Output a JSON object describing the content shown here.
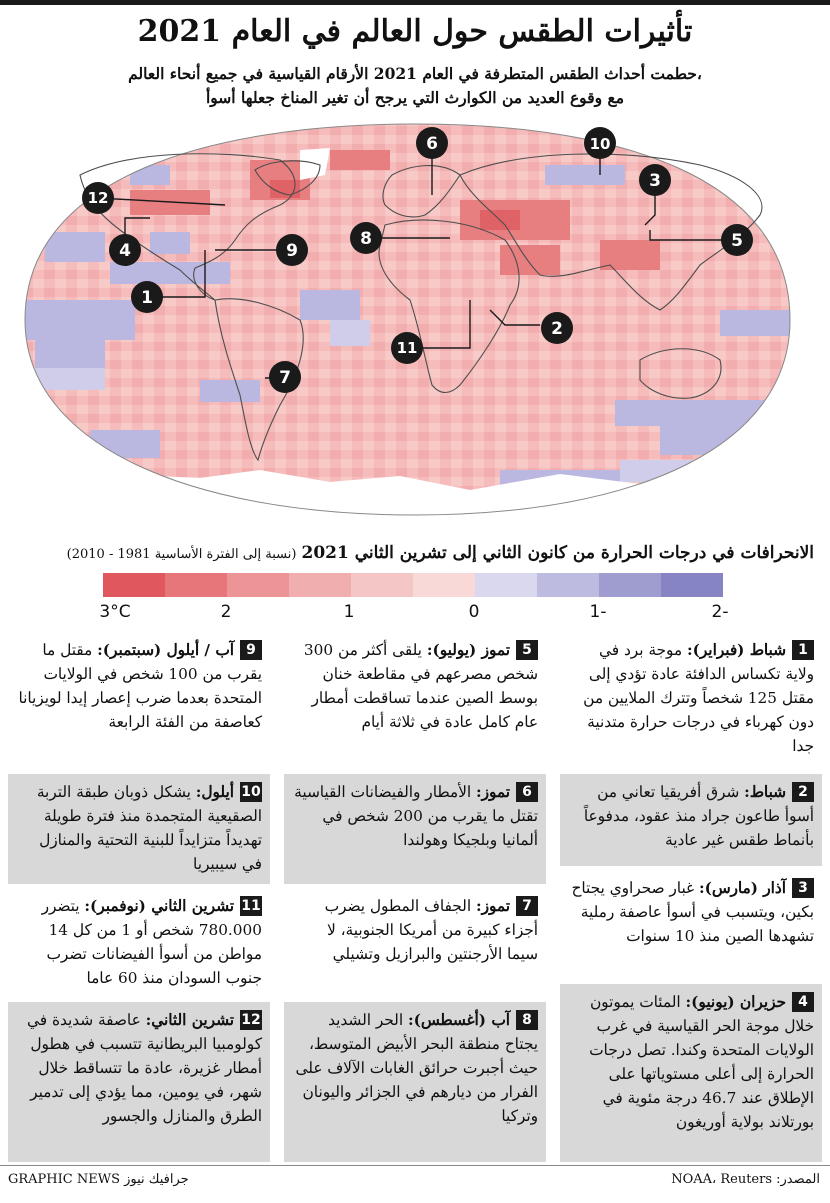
{
  "title": "تأثيرات الطقس حول العالم في العام 2021",
  "subtitle": {
    "line1": "حطمت أحداث الطقس المتطرفة في العام 2021 الأرقام القياسية في جميع أنحاء العالم،",
    "line2": "مع وقوع العديد من الكوارث التي يرجح أن تغير المناخ جعلها أسوأ"
  },
  "map": {
    "markers": [
      "1",
      "2",
      "3",
      "4",
      "5",
      "6",
      "7",
      "8",
      "9",
      "10",
      "11",
      "12"
    ],
    "colors": {
      "land_outline": "#555555",
      "ocean_warm": "#f6b8b6",
      "ocean_cool": "#b9b7df",
      "hot": "#e5787a",
      "marker_fill": "#1a1a1a"
    }
  },
  "legend": {
    "title_bold": "الانحرافات في درجات الحرارة من كانون الثاني إلى تشرين الثاني 2021",
    "title_note": "(نسبة إلى الفترة الأساسية 1981 - 2010)",
    "colors": [
      "#e0575d",
      "#e6767a",
      "#ec9496",
      "#f1aeae",
      "#f5c6c6",
      "#f8d9d8",
      "#d9d8ee",
      "#bdbce0",
      "#9f9dd0",
      "#8684c2"
    ],
    "ticks": [
      "3°C",
      "2",
      "1",
      "0",
      "1-",
      "2-"
    ]
  },
  "events": [
    {
      "num": "1",
      "head": "شباط (فبراير):",
      "text": "موجة برد في ولاية تكساس الدافئة عادة تؤدي إلى مقتل 125 شخصاً وتترك الملايين من دون كهرباء في درجات حرارة متدنية جدا"
    },
    {
      "num": "2",
      "head": "شباط:",
      "text": "شرق أفريقيا تعاني من أسوأ طاعون جراد منذ عقود، مدفوعاً بأنماط طقس غير عادية"
    },
    {
      "num": "3",
      "head": "آذار (مارس):",
      "text": "غبار صحراوي يجتاح بكين، ويتسبب في أسوأ عاصفة رملية تشهدها الصين منذ 10 سنوات"
    },
    {
      "num": "4",
      "head": "حزيران (يونيو):",
      "text": "المئات يموتون خلال موجة الحر القياسية في غرب الولايات المتحدة وكندا. تصل درجات الحرارة إلى أعلى مستوياتها على الإطلاق عند 46.7 درجة مئوية في بورتلاند بولاية أوريغون"
    },
    {
      "num": "5",
      "head": "تموز (يوليو):",
      "text": "يلقى أكثر من 300 شخص مصرعهم في مقاطعة خنان بوسط الصين عندما تساقطت أمطار عام كامل عادة في ثلاثة أيام"
    },
    {
      "num": "6",
      "head": "تموز:",
      "text": "الأمطار والفيضانات القياسية تقتل ما يقرب من 200 شخص في ألمانيا وبلجيكا وهولندا"
    },
    {
      "num": "7",
      "head": "تموز:",
      "text": "الجفاف المطول يضرب أجزاء كبيرة من أمريكا الجنوبية، لا سيما الأرجنتين والبرازيل وتشيلي"
    },
    {
      "num": "8",
      "head": "آب (أغسطس):",
      "text": "الحر الشديد يجتاح منطقة البحر الأبيض المتوسط، حيث أجبرت حرائق الغابات الآلاف على الفرار من ديارهم في الجزائر واليونان وتركيا"
    },
    {
      "num": "9",
      "head": "آب / أيلول (سبتمبر):",
      "text": "مقتل ما يقرب من 100 شخص في الولايات المتحدة بعدما ضرب إعصار إيدا لويزيانا كعاصفة من الفئة الرابعة"
    },
    {
      "num": "10",
      "head": "أيلول:",
      "text": "يشكل ذوبان طبقة التربة الصقيعية المتجمدة منذ فترة طويلة تهديداً متزايداً للبنية التحتية والمنازل في سيبيريا"
    },
    {
      "num": "11",
      "head": "تشرين الثاني (نوفمبر):",
      "text": "يتضرر 780.000 شخص أو 1 من كل 14 مواطن من أسوأ الفيضانات تضرب جنوب السودان منذ 60 عاما"
    },
    {
      "num": "12",
      "head": "تشرين الثاني:",
      "text": "عاصفة شديدة في كولومبيا البريطانية تتسبب في هطول أمطار غزيرة، عادة ما تتساقط خلال شهر، في يومين، مما يؤدي إلى تدمير الطرق والمنازل والجسور"
    }
  ],
  "footer": {
    "source": "المصدر: NOAA، Reuters",
    "credit": "GRAPHIC NEWS جرافيك نيوز"
  }
}
